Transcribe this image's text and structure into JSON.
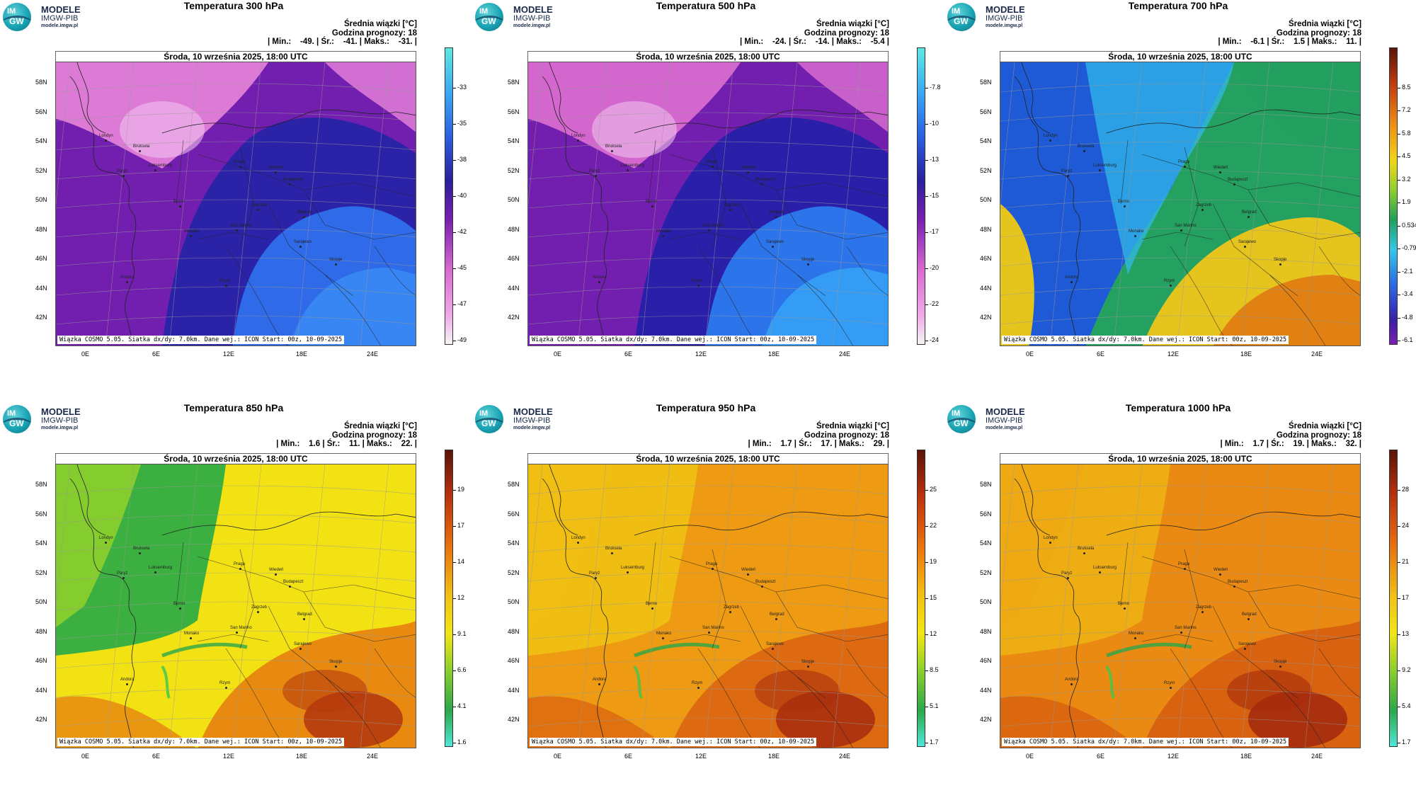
{
  "logo": {
    "line1": "MODELE",
    "line2": "IMGW-PIB",
    "line3": "modele.imgw.pl",
    "badge_top": "IM",
    "badge_bottom": "GW"
  },
  "common": {
    "date": "Środa, 10 września 2025, 18:00 UTC",
    "beam_label": "Średnia wiązki [°C]",
    "forecast_hour": "Godzina prognozy: 18",
    "footer": "Wiązka COSMO 5.05. Siatka dx/dy: 7.0km. Dane wej.: ICON Start: 00z, 10-09-2025",
    "lat_labels": [
      "58N",
      "56N",
      "54N",
      "52N",
      "50N",
      "48N",
      "46N",
      "44N",
      "42N"
    ],
    "lon_labels": [
      "0E",
      "6E",
      "12E",
      "18E",
      "24E"
    ],
    "cities": [
      "Londyn",
      "Bruksela",
      "Paryż",
      "Luksemburg",
      "Praga",
      "Wiedeń",
      "Budapeszt",
      "Berno",
      "Zagrzeb",
      "Belgrad",
      "San Marino",
      "Sarajewo",
      "Monako",
      "Skopje",
      "Andora",
      "Rzym"
    ]
  },
  "panels": [
    {
      "title": "Temperatura 300 hPa",
      "stats": "| Min.:    -49. | Śr.:    -41. | Maks.:    -31. |",
      "colorbar": [
        "-33",
        "-35",
        "-38",
        "-40",
        "-42",
        "-45",
        "-47",
        "-49"
      ],
      "palette": "cold",
      "colors": {
        "a": "#e27fd8",
        "b": "#7a1fb0",
        "c": "#2a23a8",
        "d": "#2f6ae8",
        "e": "#3b8df5"
      }
    },
    {
      "title": "Temperatura 500 hPa",
      "stats": "| Min.:    -24. | Śr.:    -14. | Maks.:    -5.4 |",
      "colorbar": [
        "-7.8",
        "-10",
        "-13",
        "-15",
        "-17",
        "-20",
        "-22",
        "-24"
      ],
      "palette": "cold",
      "colors": {
        "a": "#d86bd0",
        "b": "#7a1fb0",
        "c": "#2a1fa8",
        "d": "#2b74ea",
        "e": "#37a6f7"
      }
    },
    {
      "title": "Temperatura 700 hPa",
      "stats": "| Min.:    -6.1 | Śr.:    1.5 | Maks.:    11. |",
      "colorbar": [
        "8.5",
        "7.2",
        "5.8",
        "4.5",
        "3.2",
        "1.9",
        "0.534",
        "-0.791",
        "-2.1",
        "-3.4",
        "-4.8",
        "-6.1"
      ],
      "palette": "mid",
      "colors": {
        "a": "#1f5ad6",
        "b": "#30b8e8",
        "c": "#24a060",
        "d": "#e6c41e",
        "e": "#e07a12"
      }
    },
    {
      "title": "Temperatura 850 hPa",
      "stats": "| Min.:    1.6 | Śr.:    11. | Maks.:    22. |",
      "colorbar": [
        "19",
        "17",
        "14",
        "12",
        "9.1",
        "6.6",
        "4.1",
        "1.6"
      ],
      "palette": "warm1",
      "colors": {
        "a": "#3bb040",
        "b": "#8ed02c",
        "c": "#f2e214",
        "d": "#e88a10",
        "e": "#b53a0e"
      }
    },
    {
      "title": "Temperatura 950 hPa",
      "stats": "| Min.:    1.7 | Śr.:    17. | Maks.:    29. |",
      "colorbar": [
        "25",
        "22",
        "19",
        "15",
        "12",
        "8.5",
        "5.1",
        "1.7"
      ],
      "palette": "warm2",
      "colors": {
        "a": "#f2e214",
        "b": "#f2c014",
        "c": "#ee9a12",
        "d": "#dd6a10",
        "e": "#a8300e"
      }
    },
    {
      "title": "Temperatura 1000 hPa",
      "stats": "| Min.:    1.7 | Śr.:    19. | Maks.:    32. |",
      "colorbar": [
        "28",
        "24",
        "21",
        "17",
        "13",
        "9.2",
        "5.4",
        "1.7"
      ],
      "palette": "warm3",
      "colors": {
        "a": "#f2d014",
        "b": "#f0a814",
        "c": "#ea8a12",
        "d": "#d8620f",
        "e": "#a52c0e"
      }
    }
  ]
}
